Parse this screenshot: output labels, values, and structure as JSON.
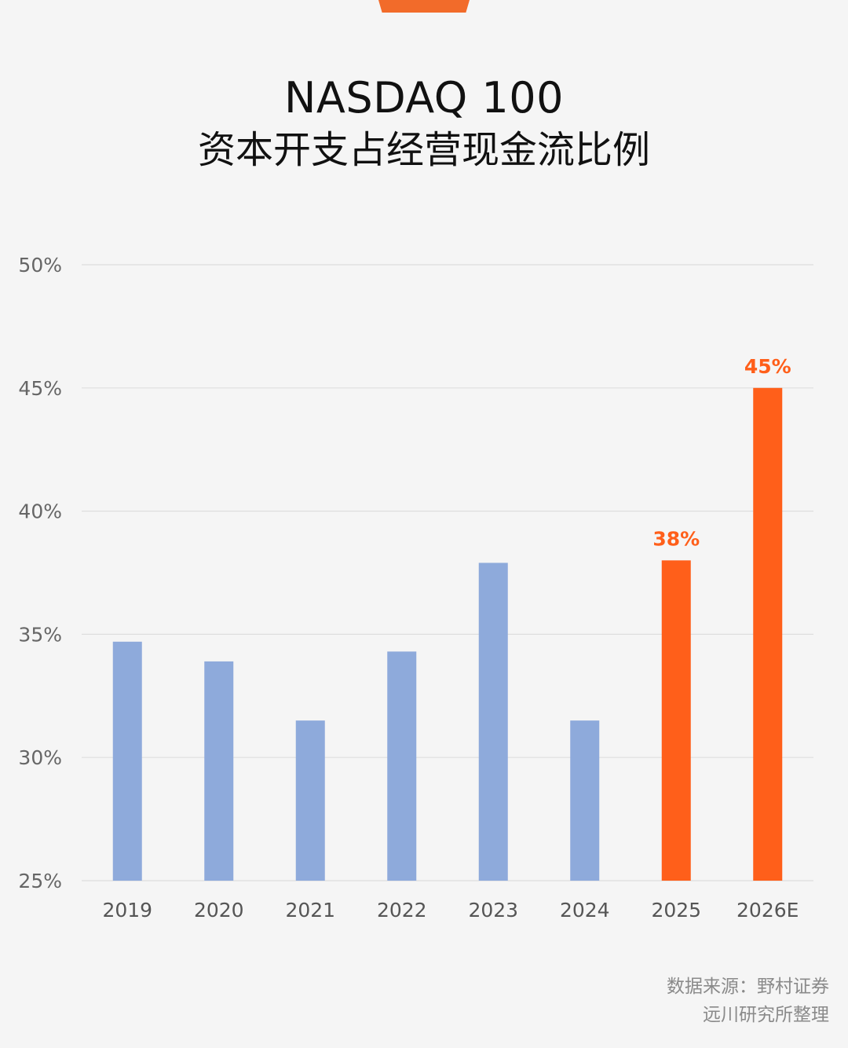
{
  "title": {
    "line1": "NASDAQ 100",
    "line2": "资本开支占经营现金流比例"
  },
  "source": {
    "line1": "数据来源：野村证券",
    "line2": "远川研究所整理"
  },
  "colors": {
    "historical_bar": "#8eaadb",
    "highlight_bar": "#ff5f1a",
    "grid": "#dedede",
    "axis_text": "#666666",
    "label_text": "#ff5f1a"
  },
  "chart_data": {
    "type": "bar",
    "categories": [
      "2019",
      "2020",
      "2021",
      "2022",
      "2023",
      "2024",
      "2025",
      "2026E"
    ],
    "values": [
      34.7,
      33.9,
      31.5,
      34.3,
      37.9,
      31.5,
      38,
      45
    ],
    "ylim": [
      25,
      50
    ],
    "yticks": [
      50,
      45,
      40,
      35,
      30,
      25
    ],
    "ytick_labels": [
      "50%",
      "45%",
      "40%",
      "35%",
      "30%",
      "25%"
    ],
    "highlight_categories": [
      "2025",
      "2026E"
    ],
    "data_labels": [
      {
        "category": "2025",
        "label": "38%"
      },
      {
        "category": "2026E",
        "label": "45%"
      }
    ],
    "grid": true
  }
}
